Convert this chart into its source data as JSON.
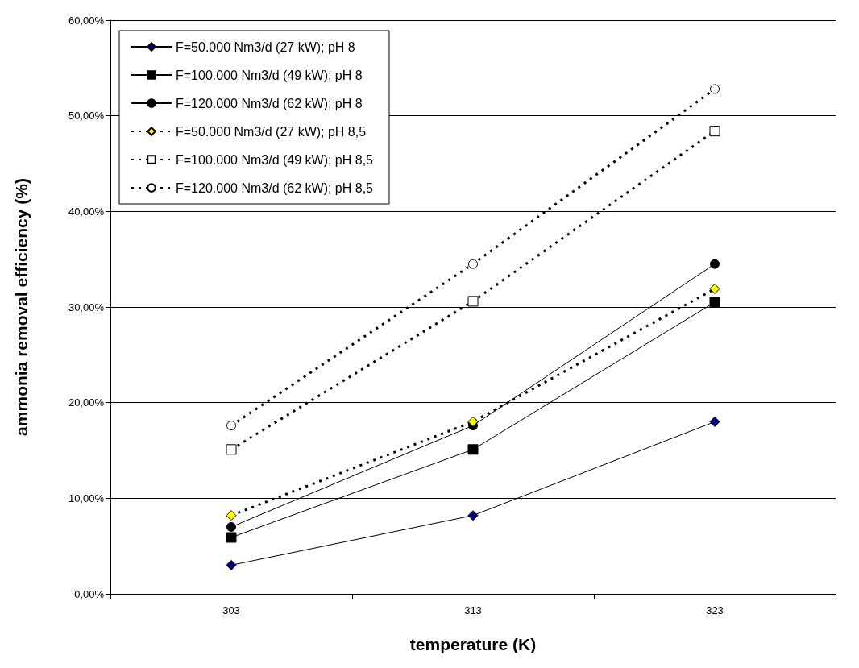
{
  "chart_data": {
    "type": "line",
    "xlabel": "temperature (K)",
    "ylabel": "ammonia removal efficiency (%)",
    "categories": [
      "303",
      "313",
      "323"
    ],
    "ylim": [
      0,
      60
    ],
    "yticks": [
      {
        "value": 0,
        "label": "0,00%"
      },
      {
        "value": 10,
        "label": "10,00%"
      },
      {
        "value": 20,
        "label": "20,00%"
      },
      {
        "value": 30,
        "label": "30,00%"
      },
      {
        "value": 40,
        "label": "40,00%"
      },
      {
        "value": 50,
        "label": "50,00%"
      },
      {
        "value": 60,
        "label": "60,00%"
      }
    ],
    "grid": "y",
    "legend": "top left",
    "series": [
      {
        "name": "F=50.000 Nm3/d (27 kW); pH 8",
        "color": "#000080",
        "marker": "diamond",
        "line_style": "solid",
        "values": [
          3.0,
          8.2,
          18.0
        ]
      },
      {
        "name": "F=100.000 Nm3/d (49 kW); pH 8",
        "color": "#000000",
        "marker": "square",
        "line_style": "solid",
        "values": [
          5.9,
          15.1,
          30.5
        ]
      },
      {
        "name": "F=120.000 Nm3/d (62 kW); pH 8",
        "color": "#000000",
        "marker": "circle",
        "line_style": "solid",
        "values": [
          7.0,
          17.6,
          34.5
        ]
      },
      {
        "name": "F=50.000 Nm3/d (27 kW); pH 8,5",
        "color": "#ffff00",
        "marker": "diamond",
        "line_style": "dotted",
        "values": [
          8.2,
          18.0,
          31.9
        ]
      },
      {
        "name": "F=100.000 Nm3/d (49 kW); pH 8,5",
        "color": "#ffffff",
        "marker": "square",
        "line_style": "dotted",
        "values": [
          15.1,
          30.6,
          48.4
        ]
      },
      {
        "name": "F=120.000 Nm3/d (62 kW); pH 8,5",
        "color": "#ffffff",
        "marker": "circle",
        "line_style": "dotted",
        "values": [
          17.6,
          34.5,
          52.8
        ]
      }
    ]
  }
}
